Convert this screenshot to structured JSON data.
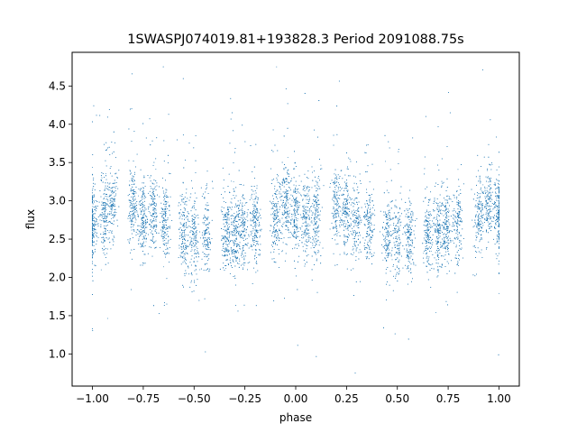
{
  "chart_data": {
    "type": "scatter",
    "title": "1SWASPJ074019.81+193828.3 Period 2091088.75s",
    "xlabel": "phase",
    "ylabel": "flux",
    "xlim": [
      -1.1,
      1.1
    ],
    "ylim": [
      0.58,
      4.94
    ],
    "xticks": [
      -1.0,
      -0.75,
      -0.5,
      -0.25,
      0.0,
      0.25,
      0.5,
      0.75,
      1.0
    ],
    "xtick_labels": [
      "−1.00",
      "−0.75",
      "−0.50",
      "−0.25",
      "0.00",
      "0.25",
      "0.50",
      "0.75",
      "1.00"
    ],
    "yticks": [
      1.0,
      1.5,
      2.0,
      2.5,
      3.0,
      3.5,
      4.0,
      4.5
    ],
    "ytick_labels": [
      "1.0",
      "1.5",
      "2.0",
      "2.5",
      "3.0",
      "3.5",
      "4.0",
      "4.5"
    ],
    "grid": false,
    "series": [
      {
        "marker_color": "#1f77b4",
        "point_count": 12000,
        "x_range": [
          -1.0,
          1.0
        ],
        "y_range": [
          0.75,
          4.75
        ],
        "clusters": [
          {
            "x": -1.0,
            "y": 2.7
          },
          {
            "x": -0.94,
            "y": 2.8
          },
          {
            "x": -0.9,
            "y": 3.0
          },
          {
            "x": -0.8,
            "y": 2.9
          },
          {
            "x": -0.75,
            "y": 2.75
          },
          {
            "x": -0.7,
            "y": 2.8
          },
          {
            "x": -0.64,
            "y": 2.7
          },
          {
            "x": -0.55,
            "y": 2.55
          },
          {
            "x": -0.5,
            "y": 2.5
          },
          {
            "x": -0.44,
            "y": 2.55
          },
          {
            "x": -0.34,
            "y": 2.55
          },
          {
            "x": -0.3,
            "y": 2.6
          },
          {
            "x": -0.26,
            "y": 2.65
          },
          {
            "x": -0.2,
            "y": 2.7
          },
          {
            "x": -0.1,
            "y": 2.8
          },
          {
            "x": -0.05,
            "y": 2.95
          },
          {
            "x": 0.0,
            "y": 2.8
          },
          {
            "x": 0.05,
            "y": 2.75
          },
          {
            "x": 0.1,
            "y": 2.8
          },
          {
            "x": 0.2,
            "y": 2.9
          },
          {
            "x": 0.25,
            "y": 2.8
          },
          {
            "x": 0.3,
            "y": 2.7
          },
          {
            "x": 0.36,
            "y": 2.7
          },
          {
            "x": 0.45,
            "y": 2.55
          },
          {
            "x": 0.5,
            "y": 2.5
          },
          {
            "x": 0.56,
            "y": 2.55
          },
          {
            "x": 0.65,
            "y": 2.55
          },
          {
            "x": 0.7,
            "y": 2.6
          },
          {
            "x": 0.74,
            "y": 2.65
          },
          {
            "x": 0.8,
            "y": 2.7
          },
          {
            "x": 0.9,
            "y": 2.8
          },
          {
            "x": 0.95,
            "y": 2.95
          },
          {
            "x": 1.0,
            "y": 2.8
          }
        ]
      }
    ]
  }
}
